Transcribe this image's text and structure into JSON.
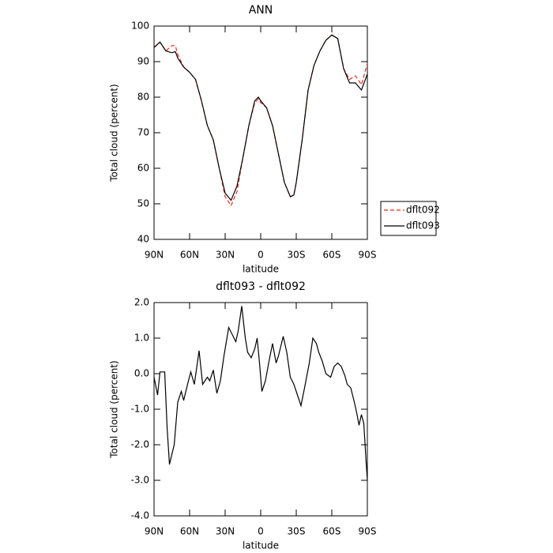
{
  "chart_data": [
    {
      "type": "line",
      "title": "ANN",
      "xlabel": "latitude",
      "ylabel": "Total cloud (percent)",
      "x": [
        90,
        85,
        80,
        75,
        72,
        70,
        65,
        60,
        55,
        50,
        45,
        40,
        35,
        30,
        25,
        20,
        15,
        10,
        5,
        2,
        0,
        -5,
        -10,
        -15,
        -20,
        -25,
        -28,
        -30,
        -35,
        -40,
        -45,
        -50,
        -55,
        -60,
        -65,
        -70,
        -75,
        -80,
        -85,
        -90
      ],
      "series": [
        {
          "name": "dflt092",
          "color": "#e8291c",
          "dash": true,
          "values": [
            94,
            95.5,
            93,
            94.5,
            94.5,
            92,
            88.5,
            87,
            85,
            79,
            72,
            68,
            60,
            52,
            49.5,
            53.5,
            63,
            72,
            78.5,
            79.5,
            78.5,
            77,
            72,
            64,
            56,
            52,
            52.5,
            56,
            68,
            82,
            89,
            93,
            96,
            97.5,
            96.5,
            88,
            85,
            86,
            83.5,
            89.5
          ]
        },
        {
          "name": "dflt093",
          "color": "#000000",
          "dash": false,
          "values": [
            94,
            95.5,
            93,
            92.5,
            92.8,
            91,
            88.5,
            87,
            85,
            79,
            72,
            68,
            60,
            53,
            51,
            55,
            63,
            72,
            79,
            80,
            79,
            77,
            72,
            64,
            56,
            52,
            52.5,
            56,
            68,
            82,
            89,
            93,
            96,
            97.5,
            96.5,
            88,
            84,
            84,
            82,
            86.5
          ]
        }
      ],
      "xlim": [
        90,
        -90
      ],
      "xticks": [
        {
          "value": 90,
          "label": "90N"
        },
        {
          "value": 60,
          "label": "60N"
        },
        {
          "value": 30,
          "label": "30N"
        },
        0,
        {
          "value": -30,
          "label": "30S"
        },
        {
          "value": -60,
          "label": "60S"
        },
        {
          "value": -90,
          "label": "90S"
        }
      ],
      "ylim": [
        40,
        100
      ],
      "yticks": [
        40,
        50,
        60,
        70,
        80,
        90,
        100
      ]
    },
    {
      "type": "line",
      "title": "dflt093 - dflt092",
      "xlabel": "latitude",
      "ylabel": "Total cloud (percent)",
      "x": [
        90,
        87,
        85,
        81,
        79,
        77,
        73,
        70,
        67,
        65,
        61,
        59,
        56,
        52,
        49,
        45,
        43,
        40,
        37,
        34,
        31,
        27,
        24,
        21,
        19,
        16,
        13,
        11,
        8,
        5,
        3,
        1,
        -1,
        -4,
        -7,
        -10,
        -13,
        -15,
        -19,
        -22,
        -25,
        -28,
        -31,
        -34,
        -37,
        -41,
        -44,
        -47,
        -49,
        -52,
        -55,
        -59,
        -62,
        -65,
        -68,
        -71,
        -73,
        -76,
        -79,
        -81,
        -83,
        -85,
        -87,
        -89,
        -90
      ],
      "color": "#000000",
      "values": [
        -0.1,
        -0.6,
        0.05,
        0.05,
        -1.5,
        -2.55,
        -2.0,
        -0.8,
        -0.5,
        -0.75,
        -0.2,
        0.05,
        -0.3,
        0.65,
        -0.3,
        -0.1,
        -0.2,
        0.1,
        -0.55,
        -0.2,
        0.5,
        1.3,
        1.1,
        0.9,
        1.2,
        1.9,
        1.0,
        0.6,
        0.45,
        0.7,
        1.0,
        0.3,
        -0.5,
        -0.2,
        0.35,
        0.85,
        0.3,
        0.5,
        1.05,
        0.6,
        -0.1,
        -0.3,
        -0.6,
        -0.9,
        -0.4,
        0.3,
        1.0,
        0.85,
        0.6,
        0.35,
        0.0,
        -0.1,
        0.2,
        0.3,
        0.2,
        -0.05,
        -0.3,
        -0.4,
        -0.8,
        -1.1,
        -1.45,
        -1.15,
        -1.4,
        -2.5,
        -3.0
      ],
      "xlim": [
        90,
        -90
      ],
      "xticks": [
        {
          "value": 90,
          "label": "90N"
        },
        {
          "value": 60,
          "label": "60N"
        },
        {
          "value": 30,
          "label": "30N"
        },
        0,
        {
          "value": -30,
          "label": "30S"
        },
        {
          "value": -60,
          "label": "60S"
        },
        {
          "value": -90,
          "label": "90S"
        }
      ],
      "ylim": [
        -4,
        2
      ],
      "yticks": [
        {
          "value": -4,
          "label": "-4.0"
        },
        {
          "value": -3,
          "label": "-3.0"
        },
        {
          "value": -2,
          "label": "-2.0"
        },
        {
          "value": -1,
          "label": "-1.0"
        },
        {
          "value": 0,
          "label": "0.0"
        },
        {
          "value": 1,
          "label": "1.0"
        },
        {
          "value": 2,
          "label": "2.0"
        }
      ]
    }
  ]
}
